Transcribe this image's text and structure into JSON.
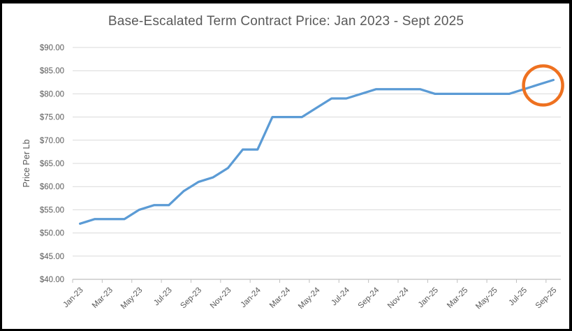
{
  "frame": {
    "background": "#FFFFFF",
    "border_color": "#000000"
  },
  "chart_data": {
    "type": "line",
    "title": "Base-Escalated Term Contract Price: Jan 2023 - Sept 2025",
    "xlabel": "",
    "ylabel": "Price Per Lb",
    "ylim": [
      40,
      90
    ],
    "ytick_step": 5,
    "ytick_labels": [
      "$40.00",
      "$45.00",
      "$50.00",
      "$55.00",
      "$60.00",
      "$65.00",
      "$70.00",
      "$75.00",
      "$80.00",
      "$85.00",
      "$90.00"
    ],
    "categories": [
      "Jan-23",
      "Feb-23",
      "Mar-23",
      "Apr-23",
      "May-23",
      "Jun-23",
      "Jul-23",
      "Aug-23",
      "Sep-23",
      "Oct-23",
      "Nov-23",
      "Dec-23",
      "Jan-24",
      "Feb-24",
      "Mar-24",
      "Apr-24",
      "May-24",
      "Jun-24",
      "Jul-24",
      "Aug-24",
      "Sep-24",
      "Oct-24",
      "Nov-24",
      "Dec-24",
      "Jan-25",
      "Feb-25",
      "Mar-25",
      "Apr-25",
      "May-25",
      "Jun-25",
      "Jul-25",
      "Aug-25",
      "Sep-25"
    ],
    "xtick_labels_shown": [
      "Jan-23",
      "Mar-23",
      "May-23",
      "Jul-23",
      "Sep-23",
      "Nov-23",
      "Jan-24",
      "Mar-24",
      "May-24",
      "Jul-24",
      "Sep-24",
      "Nov-24",
      "Jan-25",
      "Mar-25",
      "May-25",
      "Jul-25",
      "Sep-25"
    ],
    "series": [
      {
        "name": "Base-Escalated Term Contract Price ($/lb)",
        "color": "#5B9BD5",
        "stroke_width": 3.25,
        "values": [
          52,
          53,
          53,
          53,
          55,
          56,
          56,
          59,
          61,
          62,
          64,
          68,
          68,
          75,
          75,
          75,
          77,
          79,
          79,
          80,
          81,
          81,
          81,
          81,
          80,
          80,
          80,
          80,
          80,
          80,
          81,
          82,
          83
        ]
      }
    ],
    "grid": "horizontal",
    "gridline_color": "#D9D9D9",
    "axis_color": "#BFBFBF",
    "text_color": "#595959",
    "legend": "none",
    "annotation": {
      "type": "circle-highlight",
      "description": "orange circle highlighting the latest price increase at the end of the line",
      "color": "#EE7120",
      "stroke_width": 4.5,
      "category_index": 31.3,
      "value": 81.8,
      "radius_px": 28
    }
  }
}
